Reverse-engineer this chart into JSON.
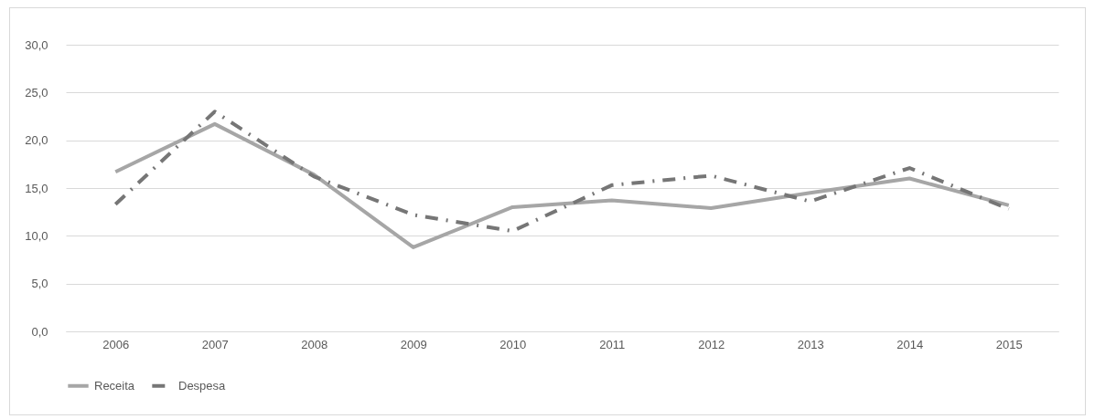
{
  "chart_data": {
    "type": "line",
    "categories": [
      "2006",
      "2007",
      "2008",
      "2009",
      "2010",
      "2011",
      "2012",
      "2013",
      "2014",
      "2015"
    ],
    "series": [
      {
        "name": "Receita",
        "color": "#a6a6a6",
        "line_style": "solid",
        "values": [
          16.7,
          21.7,
          16.4,
          8.8,
          13.0,
          13.7,
          12.9,
          14.5,
          16.0,
          13.2
        ]
      },
      {
        "name": "Despesa",
        "color": "#767676",
        "line_style": "dashed",
        "values": [
          13.3,
          23.0,
          16.2,
          12.2,
          10.5,
          15.3,
          16.3,
          13.6,
          17.1,
          12.8
        ]
      }
    ],
    "ylim": [
      0,
      30
    ],
    "yticks": [
      {
        "value": 0,
        "label": "0,0"
      },
      {
        "value": 5,
        "label": "5,0"
      },
      {
        "value": 10,
        "label": "10,0"
      },
      {
        "value": 15,
        "label": "15,0"
      },
      {
        "value": 20,
        "label": "20,0"
      },
      {
        "value": 25,
        "label": "25,0"
      },
      {
        "value": 30,
        "label": "30,0"
      }
    ],
    "grid": "y",
    "legend": "bottom",
    "marker": "none"
  }
}
